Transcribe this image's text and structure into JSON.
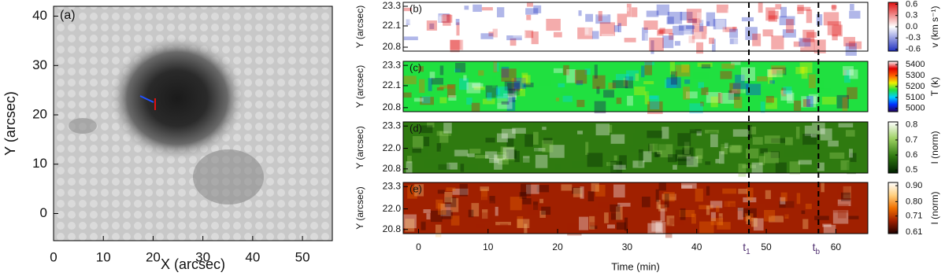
{
  "chart_data": [
    {
      "type": "image",
      "panel_label": "(a)",
      "xlabel": "X (arcsec)",
      "ylabel": "Y (arcsec)",
      "xlim": [
        0,
        56
      ],
      "ylim": [
        -5.5,
        42
      ],
      "xticks": [
        0,
        10,
        20,
        30,
        40,
        50
      ],
      "yticks": [
        0,
        10,
        20,
        30,
        40
      ]
    },
    {
      "type": "heatmap",
      "panel_label": "(b)",
      "ylabel": "Y (arcsec)",
      "xlim": [
        -2.2,
        64.6
      ],
      "ylim": [
        20.56,
        23.54
      ],
      "yticks": [
        20.8,
        22.1,
        23.3
      ],
      "colormap": [
        "#2030c0",
        "#ffffff",
        "#e01010"
      ],
      "colorbar_label": "v (km s⁻¹)",
      "clim": [
        -0.65,
        0.65
      ],
      "cticks": [
        0.6,
        0.3,
        {
          "value": 0,
          "label": "0.0"
        },
        -0.3,
        -0.6
      ]
    },
    {
      "type": "heatmap",
      "panel_label": "(c)",
      "ylabel": "Y (arcsec)",
      "xlim": [
        -2.2,
        64.6
      ],
      "ylim": [
        20.56,
        23.54
      ],
      "yticks": [
        20.8,
        22.1,
        23.3
      ],
      "colormap": [
        "#20005a",
        "#0030ff",
        "#00d0ff",
        "#20e040",
        "#f0f000",
        "#ff6000",
        "#e00000",
        "#ffffff"
      ],
      "colorbar_label": "T (k)",
      "clim": [
        4970,
        5430
      ],
      "cticks": [
        5400,
        5300,
        5200,
        5100,
        5000
      ]
    },
    {
      "type": "heatmap",
      "panel_label": "(d)",
      "ylabel": "Y (arcsec)",
      "xlim": [
        -2.2,
        64.6
      ],
      "ylim": [
        20.56,
        23.54
      ],
      "yticks": [
        20.8,
        {
          "value": 22,
          "label": "22.0"
        },
        23.3
      ],
      "colormap": [
        "#002000",
        "#2f7a10",
        "#9cd060",
        "#ffffff"
      ],
      "colorbar_label": "I (norm)",
      "clim": [
        0.48,
        0.82
      ],
      "cticks": [
        0.8,
        0.7,
        0.6,
        0.5
      ]
    },
    {
      "type": "heatmap",
      "panel_label": "(e)",
      "ylabel": "Y (arcsec)",
      "xlabel": "Time (min)",
      "xlim": [
        -2.2,
        64.6
      ],
      "ylim": [
        20.56,
        23.54
      ],
      "yticks": [
        20.8,
        {
          "value": 22,
          "label": "22.0"
        },
        23.3
      ],
      "xticks": [
        0,
        10,
        20,
        30,
        40,
        50,
        60
      ],
      "colormap": [
        "#200000",
        "#a02000",
        "#f07000",
        "#ffd080",
        "#ffffff"
      ],
      "colorbar_label": "I (norm)",
      "clim": [
        0.6,
        0.92
      ],
      "cticks": [
        {
          "value": 0.9,
          "label": "0.90"
        },
        {
          "value": 0.8,
          "label": "0.80"
        },
        0.71,
        0.61
      ],
      "markers": [
        {
          "x": 47.5,
          "label": "t",
          "sub": "1"
        },
        {
          "x": 57.5,
          "label": "t",
          "sub": "b"
        }
      ]
    }
  ]
}
